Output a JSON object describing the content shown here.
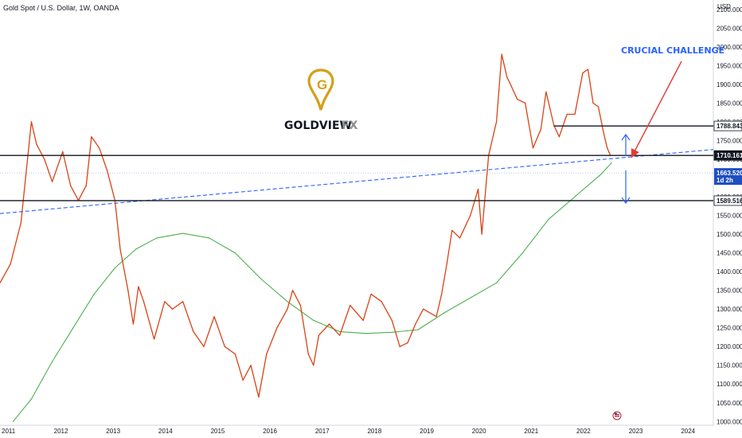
{
  "chart_data": {
    "type": "line",
    "title": "Gold Spot / U.S. Dollar, 1W, OANDA",
    "currency": "USD",
    "x_range": [
      2011.0,
      2024.65
    ],
    "ylim": [
      990,
      2125
    ],
    "ytick_labels": [
      "2100.000",
      "2050.000",
      "2000.000",
      "1950.000",
      "1900.000",
      "1850.000",
      "1800.000",
      "1750.000",
      "1700.000",
      "1650.000",
      "1600.000",
      "1550.000",
      "1500.000",
      "1450.000",
      "1400.000",
      "1350.000",
      "1300.000",
      "1250.000",
      "1200.000",
      "1150.000",
      "1100.000",
      "1050.000",
      "1000.000"
    ],
    "ytick_values": [
      2100,
      2050,
      2000,
      1950,
      1900,
      1850,
      1800,
      1750,
      1700,
      1650,
      1600,
      1550,
      1500,
      1450,
      1400,
      1350,
      1300,
      1250,
      1200,
      1150,
      1100,
      1050,
      1000
    ],
    "xtick_labels": [
      "2011",
      "2012",
      "2013",
      "2014",
      "2015",
      "2016",
      "2017",
      "2018",
      "2019",
      "2020",
      "2021",
      "2022",
      "2023",
      "2024"
    ],
    "xtick_values": [
      2011,
      2012,
      2013,
      2014,
      2015,
      2016,
      2017,
      2018,
      2019,
      2020,
      2021,
      2022,
      2023,
      2024
    ],
    "grid": false,
    "series": [
      {
        "color": "#d84315",
        "points": [
          {
            "x": 2011.0,
            "y": 1370
          },
          {
            "x": 2011.2,
            "y": 1420
          },
          {
            "x": 2011.4,
            "y": 1530
          },
          {
            "x": 2011.6,
            "y": 1800
          },
          {
            "x": 2011.7,
            "y": 1740
          },
          {
            "x": 2011.85,
            "y": 1700
          },
          {
            "x": 2012.0,
            "y": 1640
          },
          {
            "x": 2012.2,
            "y": 1720
          },
          {
            "x": 2012.35,
            "y": 1630
          },
          {
            "x": 2012.5,
            "y": 1590
          },
          {
            "x": 2012.65,
            "y": 1630
          },
          {
            "x": 2012.75,
            "y": 1760
          },
          {
            "x": 2012.9,
            "y": 1730
          },
          {
            "x": 2013.05,
            "y": 1670
          },
          {
            "x": 2013.2,
            "y": 1590
          },
          {
            "x": 2013.3,
            "y": 1460
          },
          {
            "x": 2013.45,
            "y": 1350
          },
          {
            "x": 2013.55,
            "y": 1260
          },
          {
            "x": 2013.65,
            "y": 1360
          },
          {
            "x": 2013.75,
            "y": 1320
          },
          {
            "x": 2013.95,
            "y": 1220
          },
          {
            "x": 2014.15,
            "y": 1320
          },
          {
            "x": 2014.3,
            "y": 1300
          },
          {
            "x": 2014.5,
            "y": 1320
          },
          {
            "x": 2014.7,
            "y": 1240
          },
          {
            "x": 2014.9,
            "y": 1200
          },
          {
            "x": 2015.1,
            "y": 1280
          },
          {
            "x": 2015.3,
            "y": 1200
          },
          {
            "x": 2015.5,
            "y": 1180
          },
          {
            "x": 2015.65,
            "y": 1110
          },
          {
            "x": 2015.8,
            "y": 1150
          },
          {
            "x": 2015.95,
            "y": 1065
          },
          {
            "x": 2016.1,
            "y": 1180
          },
          {
            "x": 2016.3,
            "y": 1250
          },
          {
            "x": 2016.5,
            "y": 1300
          },
          {
            "x": 2016.6,
            "y": 1350
          },
          {
            "x": 2016.75,
            "y": 1310
          },
          {
            "x": 2016.9,
            "y": 1180
          },
          {
            "x": 2017.0,
            "y": 1150
          },
          {
            "x": 2017.1,
            "y": 1230
          },
          {
            "x": 2017.3,
            "y": 1260
          },
          {
            "x": 2017.5,
            "y": 1230
          },
          {
            "x": 2017.7,
            "y": 1310
          },
          {
            "x": 2017.95,
            "y": 1270
          },
          {
            "x": 2018.1,
            "y": 1340
          },
          {
            "x": 2018.3,
            "y": 1320
          },
          {
            "x": 2018.5,
            "y": 1270
          },
          {
            "x": 2018.65,
            "y": 1200
          },
          {
            "x": 2018.8,
            "y": 1210
          },
          {
            "x": 2018.95,
            "y": 1260
          },
          {
            "x": 2019.1,
            "y": 1300
          },
          {
            "x": 2019.35,
            "y": 1280
          },
          {
            "x": 2019.45,
            "y": 1340
          },
          {
            "x": 2019.55,
            "y": 1420
          },
          {
            "x": 2019.65,
            "y": 1510
          },
          {
            "x": 2019.8,
            "y": 1490
          },
          {
            "x": 2020.0,
            "y": 1550
          },
          {
            "x": 2020.15,
            "y": 1620
          },
          {
            "x": 2020.22,
            "y": 1500
          },
          {
            "x": 2020.35,
            "y": 1710
          },
          {
            "x": 2020.5,
            "y": 1800
          },
          {
            "x": 2020.6,
            "y": 1980
          },
          {
            "x": 2020.7,
            "y": 1920
          },
          {
            "x": 2020.9,
            "y": 1860
          },
          {
            "x": 2021.05,
            "y": 1850
          },
          {
            "x": 2021.2,
            "y": 1730
          },
          {
            "x": 2021.35,
            "y": 1780
          },
          {
            "x": 2021.45,
            "y": 1880
          },
          {
            "x": 2021.6,
            "y": 1790
          },
          {
            "x": 2021.7,
            "y": 1760
          },
          {
            "x": 2021.85,
            "y": 1820
          },
          {
            "x": 2022.0,
            "y": 1820
          },
          {
            "x": 2022.15,
            "y": 1930
          },
          {
            "x": 2022.25,
            "y": 1940
          },
          {
            "x": 2022.35,
            "y": 1850
          },
          {
            "x": 2022.45,
            "y": 1840
          },
          {
            "x": 2022.55,
            "y": 1770
          },
          {
            "x": 2022.62,
            "y": 1730
          },
          {
            "x": 2022.68,
            "y": 1710
          }
        ]
      },
      {
        "color": "#4caf50",
        "points": [
          {
            "x": 2011.25,
            "y": 1000
          },
          {
            "x": 2011.6,
            "y": 1060
          },
          {
            "x": 2012.0,
            "y": 1160
          },
          {
            "x": 2012.4,
            "y": 1250
          },
          {
            "x": 2012.8,
            "y": 1340
          },
          {
            "x": 2013.2,
            "y": 1410
          },
          {
            "x": 2013.6,
            "y": 1460
          },
          {
            "x": 2014.0,
            "y": 1490
          },
          {
            "x": 2014.5,
            "y": 1502
          },
          {
            "x": 2015.0,
            "y": 1490
          },
          {
            "x": 2015.5,
            "y": 1450
          },
          {
            "x": 2016.0,
            "y": 1380
          },
          {
            "x": 2016.5,
            "y": 1320
          },
          {
            "x": 2017.0,
            "y": 1270
          },
          {
            "x": 2017.5,
            "y": 1240
          },
          {
            "x": 2018.0,
            "y": 1235
          },
          {
            "x": 2018.5,
            "y": 1238
          },
          {
            "x": 2019.0,
            "y": 1245
          },
          {
            "x": 2019.5,
            "y": 1290
          },
          {
            "x": 2020.0,
            "y": 1330
          },
          {
            "x": 2020.5,
            "y": 1370
          },
          {
            "x": 2021.0,
            "y": 1450
          },
          {
            "x": 2021.5,
            "y": 1540
          },
          {
            "x": 2022.0,
            "y": 1600
          },
          {
            "x": 2022.5,
            "y": 1660
          },
          {
            "x": 2022.7,
            "y": 1690
          }
        ]
      }
    ],
    "horizontal_lines": [
      {
        "y": 1788.843,
        "x_start": 2021.6,
        "label": "1788.843",
        "tag_color": "#ffffff",
        "text_color": "#131722"
      },
      {
        "y": 1710.161,
        "x_start": 2011.0,
        "label": "1710.161",
        "tag_color": "#131722",
        "text_color": "#ffffff"
      },
      {
        "y": 1589.516,
        "x_start": 2011.0,
        "label": "1589.516",
        "tag_color": "#ffffff",
        "text_color": "#131722"
      }
    ],
    "current_price": {
      "y": 1663.52,
      "label": "1663.520",
      "sublabel": "1d 2h",
      "color": "#1e4fc2"
    },
    "trendline": {
      "color": "#2962ff",
      "from": {
        "x": 2011.0,
        "y": 1555
      },
      "to": {
        "x": 2024.65,
        "y": 1726
      }
    },
    "annotations": {
      "crucial_challenge": "CRUCIAL CHALLENGE",
      "text_color": "#2962ff",
      "arrow_color": "#e53935",
      "range_arrow_color": "#2962ff"
    },
    "logo": {
      "word1": "GOLDVIEW",
      "word2": "FX",
      "letter": "G",
      "gold_color": "#d4a017"
    }
  }
}
